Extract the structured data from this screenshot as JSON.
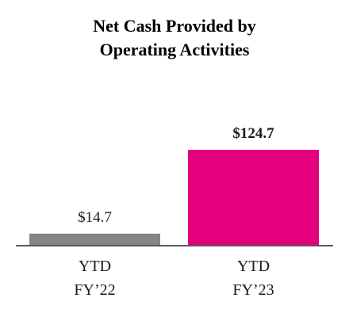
{
  "chart_data": {
    "type": "bar",
    "title": [
      "Net Cash Provided by",
      "Operating Activities"
    ],
    "categories": [
      [
        "YTD",
        "FY’22"
      ],
      [
        "YTD",
        "FY’23"
      ]
    ],
    "values": [
      14.7,
      124.7
    ],
    "value_labels": [
      "$14.7",
      "$124.7"
    ],
    "value_label_bold": [
      false,
      true
    ],
    "colors": [
      "#858585",
      "#e4007c"
    ],
    "axis_color": "#595959",
    "ylim": [
      0,
      124.7
    ],
    "grid": false,
    "legend": "none"
  }
}
